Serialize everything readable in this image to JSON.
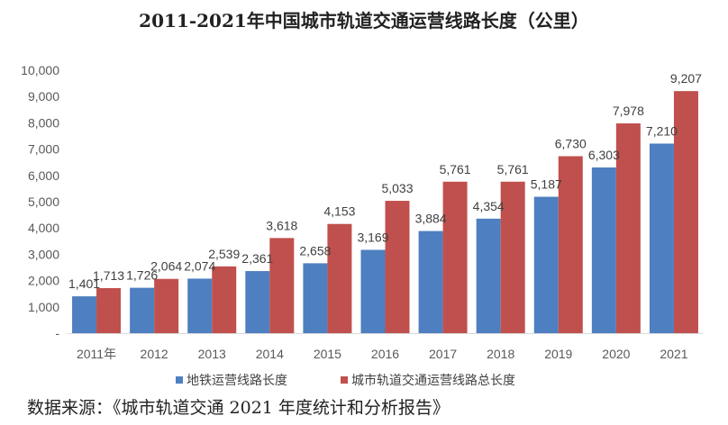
{
  "chart_data": {
    "type": "bar",
    "title": "2011-2021年中国城市轨道交通运营线路长度（公里）",
    "categories": [
      "2011年",
      "2012",
      "2013",
      "2014",
      "2015",
      "2016",
      "2017",
      "2018",
      "2019",
      "2020",
      "2021"
    ],
    "series": [
      {
        "name": "地铁运营线路长度",
        "color": "#4E7FC0",
        "values": [
          1401,
          1726,
          2074,
          2361,
          2658,
          3169,
          3884,
          4354,
          5187,
          6303,
          7210
        ]
      },
      {
        "name": "城市轨道交通运营线路总长度",
        "color": "#C0504D",
        "values": [
          1713,
          2064,
          2539,
          3618,
          4153,
          5033,
          5761,
          5761,
          6730,
          7978,
          9207
        ]
      }
    ],
    "data_labels": [
      [
        "1,401",
        "1,726",
        "2,074",
        "2,361",
        "2,658",
        "3,169",
        "3,884",
        "4,354",
        "5,187",
        "6,303",
        "7,210"
      ],
      [
        "1,713",
        "2,064",
        "2,539",
        "3,618",
        "4,153",
        "5,033",
        "5,761",
        "5,761",
        "6,730",
        "7,978",
        "9,207"
      ]
    ],
    "y_ticks": [
      "-",
      "1,000",
      "2,000",
      "3,000",
      "4,000",
      "5,000",
      "6,000",
      "7,000",
      "8,000",
      "9,000",
      "10,000"
    ],
    "ylim": [
      0,
      10000
    ],
    "grid": false,
    "legend_position": "bottom"
  },
  "source_note": "数据来源：《城市轨道交通 2021 年度统计和分析报告》"
}
